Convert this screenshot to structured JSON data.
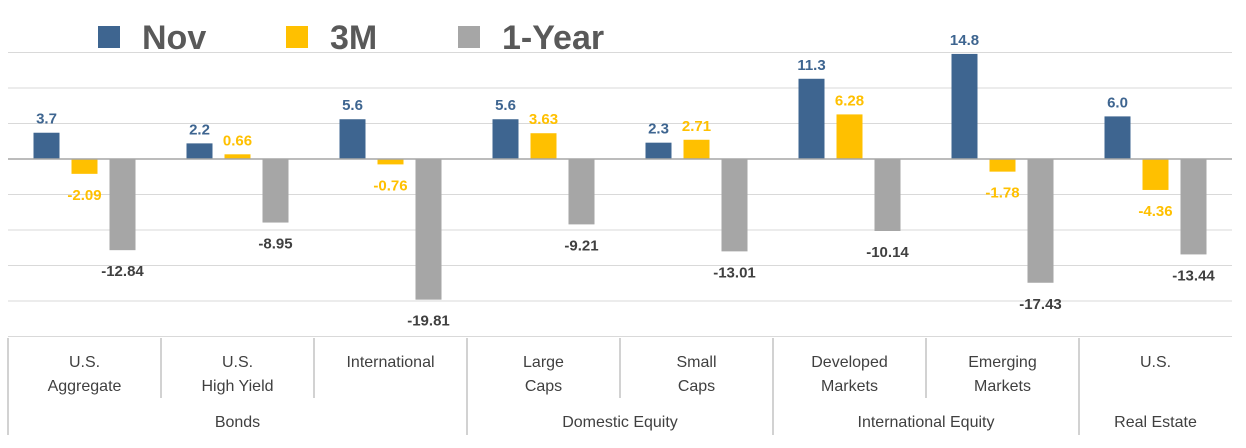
{
  "chart_data": {
    "type": "bar",
    "title": "",
    "xlabel": "",
    "ylabel": "",
    "ylim": [
      -24,
      22
    ],
    "grid": true,
    "legend_position": "top-left",
    "colors": {
      "Nov": "#3e6590",
      "3M": "#ffc000",
      "1-Year": "#a6a6a6",
      "label_1year": "#404040"
    },
    "categories": [
      [
        "U.S.",
        "Aggregate"
      ],
      [
        "U.S.",
        "High Yield"
      ],
      [
        "International"
      ],
      [
        "Large",
        "Caps"
      ],
      [
        "Small",
        "Caps"
      ],
      [
        "Developed",
        "Markets"
      ],
      [
        "Emerging",
        "Markets"
      ],
      [
        "U.S."
      ]
    ],
    "groups": [
      {
        "label": "Bonds",
        "span": 3
      },
      {
        "label": "Domestic Equity",
        "span": 2
      },
      {
        "label": "International Equity",
        "span": 2
      },
      {
        "label": "Real Estate",
        "span": 1
      }
    ],
    "series": [
      {
        "name": "Nov",
        "values": [
          3.7,
          2.2,
          5.6,
          5.6,
          2.3,
          11.3,
          14.8,
          6.0
        ],
        "labels": [
          "3.7",
          "2.2",
          "5.6",
          "5.6",
          "2.3",
          "11.3",
          "14.8",
          "6.0"
        ]
      },
      {
        "name": "3M",
        "values": [
          -2.09,
          0.66,
          -0.76,
          3.63,
          2.71,
          6.28,
          -1.78,
          -4.36
        ],
        "labels": [
          "-2.09",
          "0.66",
          "-0.76",
          "3.63",
          "2.71",
          "6.28",
          "-1.78",
          "-4.36"
        ]
      },
      {
        "name": "1-Year",
        "values": [
          -12.84,
          -8.95,
          -19.81,
          -9.21,
          -13.01,
          -10.14,
          -17.43,
          -13.44
        ],
        "labels": [
          "-12.84",
          "-8.95",
          "-19.81",
          "-9.21",
          "-13.01",
          "-10.14",
          "-17.43",
          "-13.44"
        ]
      }
    ]
  }
}
